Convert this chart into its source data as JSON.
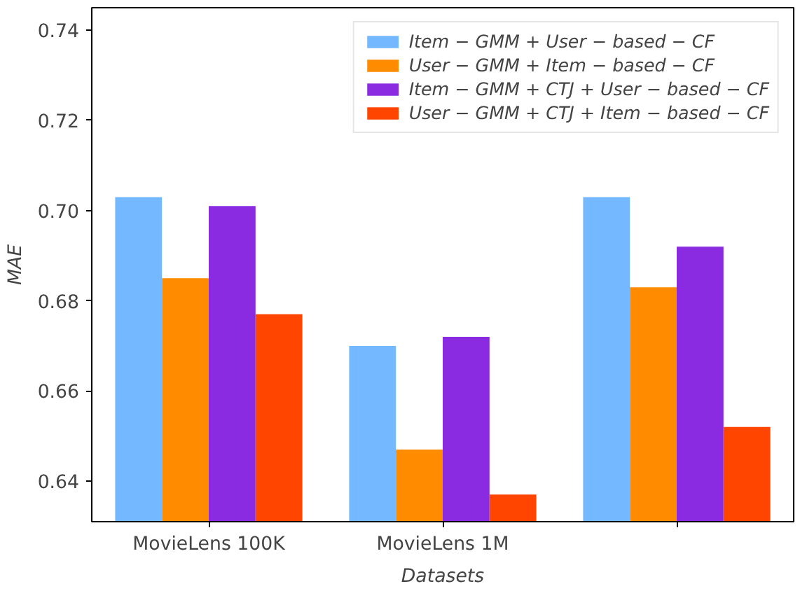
{
  "chart_data": {
    "type": "bar",
    "xlabel": "Datasets",
    "ylabel": "MAE",
    "categories": [
      "MovieLens 100K",
      "MovieLens 1M",
      null
    ],
    "series": [
      {
        "name": "Item − GMM + User − based − CF",
        "color": "#74b9ff",
        "values": [
          0.703,
          0.67,
          0.703
        ]
      },
      {
        "name": "User − GMM + Item − based − CF",
        "color": "#ff8c00",
        "values": [
          0.685,
          0.647,
          0.683
        ]
      },
      {
        "name": "Item − GMM + CTJ + User − based − CF",
        "color": "#8a2be2",
        "values": [
          0.701,
          0.672,
          0.692
        ]
      },
      {
        "name": "User − GMM + CTJ + Item − based − CF",
        "color": "#ff4500",
        "values": [
          0.677,
          0.637,
          0.652
        ]
      }
    ],
    "ylim": [
      0.631,
      0.745
    ],
    "yticks": [
      0.64,
      0.66,
      0.68,
      {
        "value": 0.7,
        "label": "0.70"
      },
      0.72,
      0.74
    ],
    "grid": false,
    "legend": "top right"
  }
}
